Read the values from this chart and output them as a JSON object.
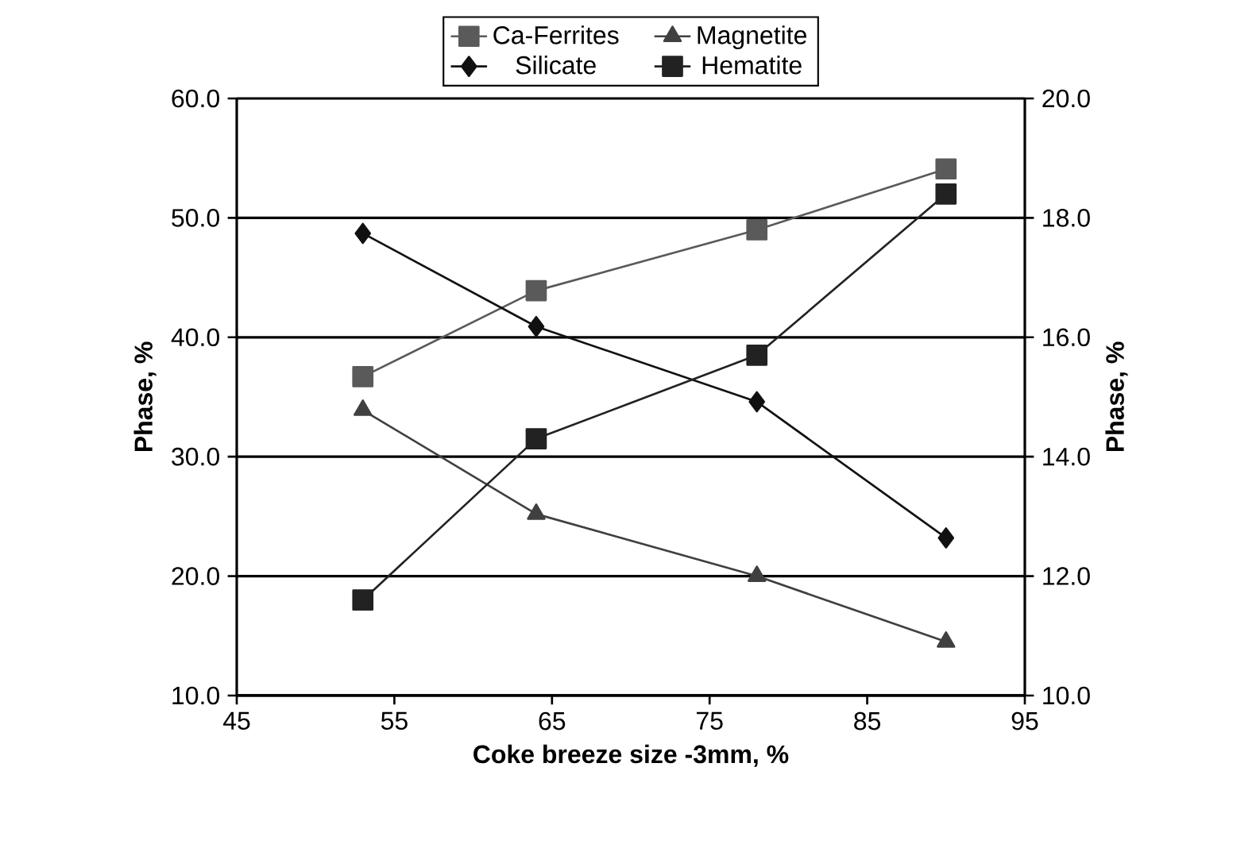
{
  "chart_data": {
    "type": "line",
    "xlabel": "Coke breeze size -3mm, %",
    "ylabel": "Phase, %",
    "y2label": "Phase, %",
    "x": [
      53,
      64,
      78,
      90
    ],
    "series": [
      {
        "name": "Ca-Ferrites",
        "color": "#5a5a5a",
        "marker": "square",
        "values": [
          36.7,
          43.9,
          49.0,
          54.1
        ]
      },
      {
        "name": "Magnetite",
        "color": "#404040",
        "marker": "triangle",
        "values": [
          33.9,
          25.2,
          20.0,
          14.5
        ]
      },
      {
        "name": "Silicate",
        "color": "#111111",
        "marker": "diamond",
        "values": [
          48.7,
          40.9,
          34.6,
          23.2
        ]
      },
      {
        "name": "Hematite",
        "color": "#222222",
        "marker": "square",
        "axis": "y2",
        "values": [
          11.6,
          14.3,
          15.7,
          18.4
        ]
      }
    ],
    "xlim": [
      45,
      95
    ],
    "xticks": [
      45,
      55,
      65,
      75,
      85,
      95
    ],
    "ylim": [
      10,
      60
    ],
    "yticks": [
      {
        "value": 10,
        "label": "10.0"
      },
      {
        "value": 20,
        "label": "20.0"
      },
      {
        "value": 30,
        "label": "30.0"
      },
      {
        "value": 40,
        "label": "40.0"
      },
      {
        "value": 50,
        "label": "50.0"
      },
      {
        "value": 60,
        "label": "60.0"
      }
    ],
    "y2lim": [
      10,
      20
    ],
    "y2ticks": [
      {
        "value": 10,
        "label": "10.0"
      },
      {
        "value": 12,
        "label": "12.0"
      },
      {
        "value": 14,
        "label": "14.0"
      },
      {
        "value": 16,
        "label": "16.0"
      },
      {
        "value": 18,
        "label": "18.0"
      },
      {
        "value": 20,
        "label": "20.0"
      }
    ],
    "grid": "y",
    "legend": "top"
  }
}
